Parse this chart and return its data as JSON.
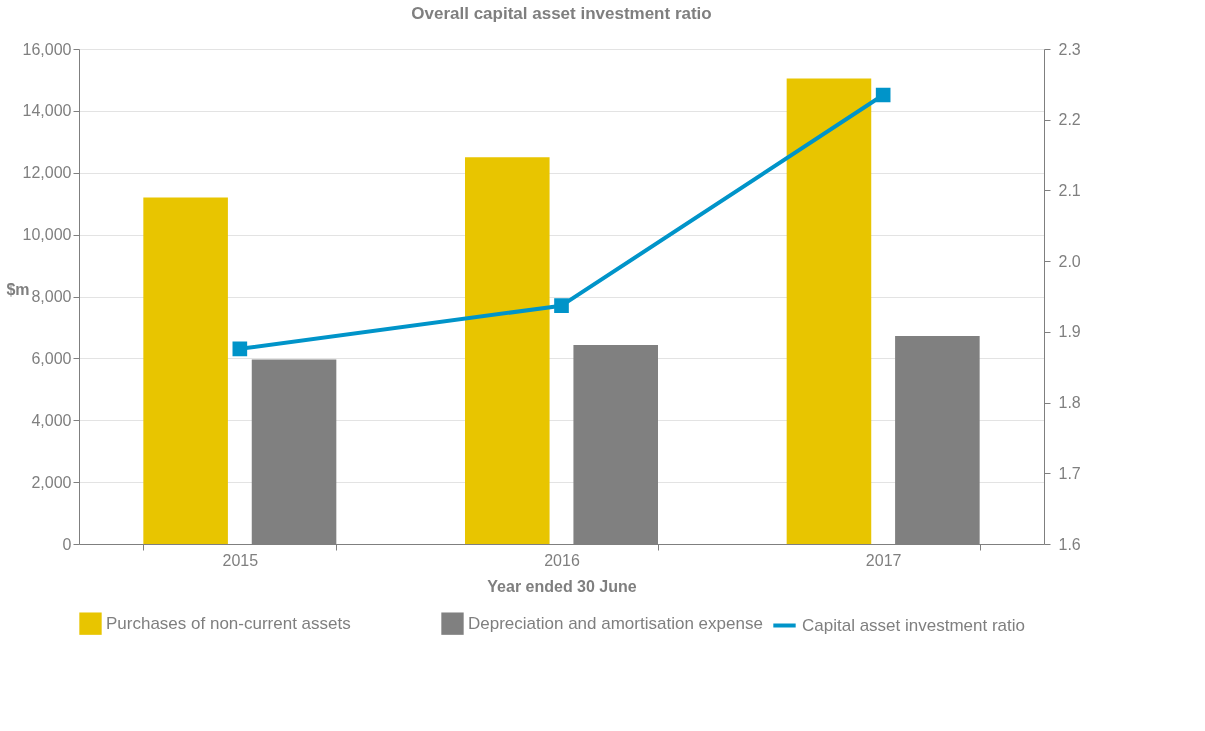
{
  "chart_data": {
    "type": "bar",
    "title": "Overall capital asset investment ratio",
    "xlabel": "Year ended 30 June",
    "ylabel": "$m",
    "categories": [
      "2015",
      "2016",
      "2017"
    ],
    "series": [
      {
        "name": "Purchases of non-current assets",
        "color": "#e8c500",
        "values": [
          11200,
          12500,
          15050
        ]
      },
      {
        "name": "Depreciation and amortisation expense",
        "color": "#808080",
        "values": [
          5960,
          6430,
          6720
        ]
      },
      {
        "name": "Capital asset investment ratio",
        "color": "#0094c9",
        "type": "line",
        "axis": "y2",
        "marker": "square",
        "values": [
          1.876,
          1.937,
          2.235
        ]
      }
    ],
    "ylim": [
      0,
      16000
    ],
    "yticks": [
      {
        "value": 0,
        "label": "0"
      },
      {
        "value": 2000,
        "label": "2,000"
      },
      {
        "value": 4000,
        "label": "4,000"
      },
      {
        "value": 6000,
        "label": "6,000"
      },
      {
        "value": 8000,
        "label": "8,000"
      },
      {
        "value": 10000,
        "label": "10,000"
      },
      {
        "value": 12000,
        "label": "12,000"
      },
      {
        "value": 14000,
        "label": "14,000"
      },
      {
        "value": 16000,
        "label": "16,000"
      }
    ],
    "y2lim": [
      1.6,
      2.3
    ],
    "y2ticks": [
      {
        "value": 1.6,
        "label": "1.6"
      },
      {
        "value": 1.7,
        "label": "1.7"
      },
      {
        "value": 1.8,
        "label": "1.8"
      },
      {
        "value": 1.9,
        "label": "1.9"
      },
      {
        "value": 2.0,
        "label": "2.0"
      },
      {
        "value": 2.1,
        "label": "2.1"
      },
      {
        "value": 2.2,
        "label": "2.2"
      },
      {
        "value": 2.3,
        "label": "2.3"
      }
    ],
    "grid": "y",
    "legend": "bottom"
  }
}
